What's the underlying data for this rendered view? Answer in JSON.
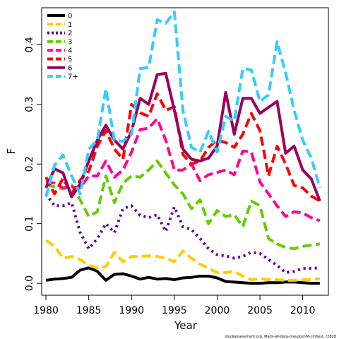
{
  "chart_data": {
    "type": "line",
    "title": "",
    "xlabel": "Year",
    "ylabel": "F",
    "xlim": [
      1979.5,
      2013.0
    ],
    "ylim": [
      -0.02,
      0.462
    ],
    "x_ticks": [
      1980,
      1985,
      1990,
      1995,
      2000,
      2005,
      2010
    ],
    "y_ticks": [
      0.0,
      0.1,
      0.2,
      0.3,
      0.4
    ],
    "y_tick_labels": [
      "0.0",
      "0.1",
      "0.2",
      "0.3",
      "0.4"
    ],
    "grid": false,
    "legend_position": "top-left",
    "source_note": "stockassessment.org, Mack-all-data-one-post-M-cmbest, r2828",
    "x": [
      1980,
      1981,
      1982,
      1983,
      1984,
      1985,
      1986,
      1987,
      1988,
      1989,
      1990,
      1991,
      1992,
      1993,
      1994,
      1995,
      1996,
      1997,
      1998,
      1999,
      2000,
      2001,
      2002,
      2003,
      2004,
      2005,
      2006,
      2007,
      2008,
      2009,
      2010,
      2011,
      2012
    ],
    "series": [
      {
        "name": "0",
        "color": "#000000",
        "dash": "solid",
        "values": [
          0.005,
          0.007,
          0.008,
          0.01,
          0.022,
          0.026,
          0.02,
          0.005,
          0.015,
          0.016,
          0.012,
          0.007,
          0.01,
          0.007,
          0.008,
          0.006,
          0.009,
          0.01,
          0.012,
          0.012,
          0.009,
          0.003,
          0.002,
          0.001,
          0.0,
          0.0,
          0.001,
          0.001,
          0.002,
          0.002,
          0.001,
          0.0,
          0.0
        ]
      },
      {
        "name": "1",
        "color": "#ffcc00",
        "dash": "dashed",
        "values": [
          0.072,
          0.062,
          0.042,
          0.045,
          0.04,
          0.03,
          0.026,
          0.028,
          0.052,
          0.036,
          0.045,
          0.045,
          0.046,
          0.045,
          0.042,
          0.036,
          0.054,
          0.042,
          0.032,
          0.025,
          0.018,
          0.018,
          0.02,
          0.012,
          0.006,
          0.008,
          0.006,
          0.006,
          0.005,
          0.005,
          0.006,
          0.006,
          0.008
        ]
      },
      {
        "name": "2",
        "color": "#660099",
        "dash": "dotted",
        "values": [
          0.15,
          0.13,
          0.13,
          0.135,
          0.085,
          0.058,
          0.075,
          0.1,
          0.085,
          0.125,
          0.13,
          0.114,
          0.11,
          0.115,
          0.087,
          0.128,
          0.095,
          0.09,
          0.075,
          0.058,
          0.048,
          0.046,
          0.042,
          0.045,
          0.052,
          0.05,
          0.04,
          0.03,
          0.018,
          0.02,
          0.025,
          0.025,
          0.026
        ]
      },
      {
        "name": "3",
        "color": "#66cc00",
        "dash": "dashed",
        "values": [
          0.165,
          0.162,
          0.158,
          0.165,
          0.14,
          0.112,
          0.12,
          0.18,
          0.135,
          0.168,
          0.18,
          0.178,
          0.19,
          0.205,
          0.185,
          0.165,
          0.15,
          0.125,
          0.14,
          0.1,
          0.122,
          0.112,
          0.115,
          0.095,
          0.138,
          0.13,
          0.075,
          0.066,
          0.06,
          0.058,
          0.062,
          0.064,
          0.066
        ]
      },
      {
        "name": "4",
        "color": "#ff0099",
        "dash": "dashed",
        "values": [
          0.17,
          0.168,
          0.16,
          0.162,
          0.16,
          0.18,
          0.18,
          0.205,
          0.178,
          0.19,
          0.22,
          0.258,
          0.26,
          0.276,
          0.24,
          0.19,
          0.19,
          0.2,
          0.172,
          0.182,
          0.186,
          0.19,
          0.182,
          0.222,
          0.22,
          0.17,
          0.15,
          0.13,
          0.112,
          0.12,
          0.118,
          0.11,
          0.105
        ]
      },
      {
        "name": "5",
        "color": "#ff0000",
        "dash": "dashed",
        "values": [
          0.178,
          0.15,
          0.176,
          0.15,
          0.173,
          0.188,
          0.23,
          0.256,
          0.225,
          0.208,
          0.3,
          0.286,
          0.28,
          0.318,
          0.29,
          0.296,
          0.216,
          0.2,
          0.205,
          0.228,
          0.24,
          0.236,
          0.228,
          0.25,
          0.285,
          0.256,
          0.18,
          0.23,
          0.2,
          0.164,
          0.16,
          0.146,
          0.138
        ]
      },
      {
        "name": "6",
        "color": "#99005d",
        "dash": "solid",
        "values": [
          0.16,
          0.192,
          0.185,
          0.145,
          0.167,
          0.205,
          0.24,
          0.265,
          0.24,
          0.225,
          0.255,
          0.31,
          0.3,
          0.35,
          0.352,
          0.29,
          0.225,
          0.208,
          0.205,
          0.21,
          0.23,
          0.32,
          0.25,
          0.31,
          0.31,
          0.285,
          0.295,
          0.305,
          0.218,
          0.23,
          0.19,
          0.175,
          0.138
        ]
      },
      {
        "name": "7+",
        "color": "#33ccff",
        "dash": "dashed",
        "values": [
          0.145,
          0.198,
          0.215,
          0.18,
          0.15,
          0.225,
          0.24,
          0.326,
          0.24,
          0.238,
          0.25,
          0.36,
          0.362,
          0.442,
          0.436,
          0.455,
          0.29,
          0.228,
          0.22,
          0.255,
          0.22,
          0.28,
          0.272,
          0.36,
          0.358,
          0.305,
          0.316,
          0.405,
          0.353,
          0.29,
          0.24,
          0.21,
          0.16
        ]
      }
    ]
  }
}
